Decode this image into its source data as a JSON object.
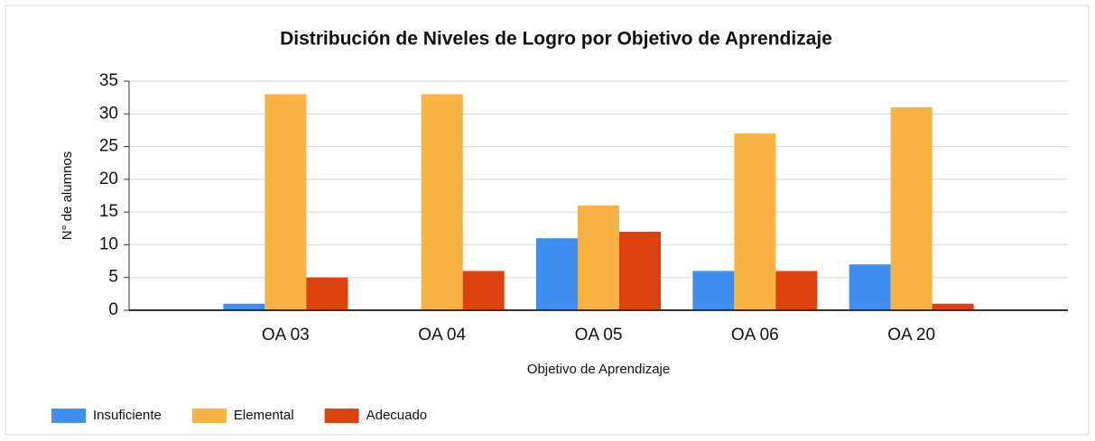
{
  "chart_data": {
    "type": "bar",
    "title": "Distribución de Niveles de Logro por Objetivo de Aprendizaje",
    "x_label": "Objetivo de Aprendizaje",
    "y_label": "N° de alumnos",
    "categories": [
      "OA 03",
      "OA 04",
      "OA 05",
      "OA 06",
      "OA 20"
    ],
    "series": [
      {
        "name": "Insuficiente",
        "color": "#3f8ef0",
        "values": [
          1,
          0,
          11,
          6,
          7
        ]
      },
      {
        "name": "Elemental",
        "color": "#f9b244",
        "values": [
          33,
          33,
          16,
          27,
          31
        ]
      },
      {
        "name": "Adecuado",
        "color": "#dc4210",
        "values": [
          5,
          6,
          12,
          6,
          1
        ]
      }
    ],
    "ylim": [
      0,
      35
    ],
    "yticks": [
      0,
      5,
      10,
      15,
      20,
      25,
      30,
      35
    ],
    "grid": true,
    "legend": "bottom-left"
  }
}
